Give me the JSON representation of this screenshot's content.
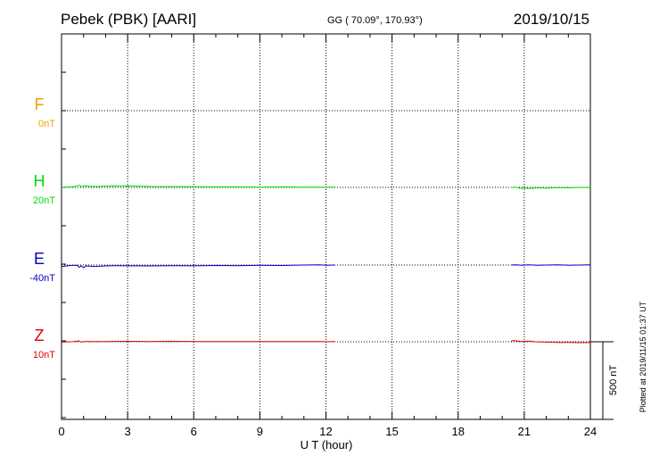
{
  "header": {
    "station": "Pebek (PBK)  [AARI]",
    "coords": "GG ( 70.09°, 170.93°)",
    "date": "2019/10/15"
  },
  "plotted_note": "Plotted at 2019/11/15 01:37 UT",
  "scale_label": "500 nT",
  "colors": {
    "F": "#f0a000",
    "H": "#00dd00",
    "E": "#0000cc",
    "Z": "#dd0000"
  },
  "chart_data": {
    "type": "line",
    "xlabel": "U T (hour)",
    "xlim": [
      0,
      24
    ],
    "xticks": [
      "0",
      "3",
      "6",
      "9",
      "12",
      "15",
      "18",
      "21",
      "24"
    ],
    "scale_bar_nT": 500,
    "series": [
      {
        "name": "F",
        "offset_label": "0nT",
        "color": "#f0a000",
        "segments": []
      },
      {
        "name": "H",
        "offset_label": "20nT",
        "color": "#00dd00",
        "segments": [
          {
            "x": [
              0,
              0.5,
              0.8,
              0.9,
              1.0,
              1.5,
              2.0,
              3.0,
              4.0,
              5.0,
              6.0,
              7.0,
              8.0,
              9.0,
              10.0,
              11.0,
              11.7,
              12.0,
              12.4
            ],
            "y": [
              0,
              4,
              14,
              6,
              10,
              6,
              8,
              10,
              6,
              5,
              4,
              3,
              3,
              2,
              3,
              2,
              2,
              1,
              2
            ]
          },
          {
            "x": [
              20.4,
              20.6,
              20.8,
              21.0,
              21.3,
              21.6,
              22.0,
              22.5,
              23.0,
              23.5,
              24.0
            ],
            "y": [
              -2,
              2,
              -6,
              -4,
              -7,
              -3,
              -5,
              -2,
              -3,
              0,
              -1
            ]
          }
        ]
      },
      {
        "name": "E",
        "offset_label": "-40nT",
        "color": "#0000cc",
        "segments": [
          {
            "x": [
              0,
              0.4,
              0.7,
              0.8,
              0.9,
              1.0,
              1.1,
              1.5,
              2.0,
              2.5,
              3.0,
              4.0,
              5.0,
              6.0,
              7.0,
              8.0,
              9.0,
              10.0,
              11.0,
              11.7,
              12.0,
              12.4
            ],
            "y": [
              -10,
              -3,
              -2,
              -15,
              -5,
              -18,
              -6,
              -9,
              -6,
              -4,
              -5,
              -6,
              -4,
              -5,
              -3,
              -4,
              -2,
              -3,
              0,
              1,
              -1,
              0
            ]
          },
          {
            "x": [
              20.4,
              20.6,
              20.9,
              21.2,
              21.6,
              22.0,
              22.5,
              23.0,
              23.5,
              24.0
            ],
            "y": [
              0,
              2,
              -1,
              1,
              -2,
              0,
              1,
              -1,
              0,
              1
            ]
          }
        ]
      },
      {
        "name": "Z",
        "offset_label": "10nT",
        "color": "#dd0000",
        "segments": [
          {
            "x": [
              0,
              0.5,
              0.8,
              0.9,
              1.0,
              1.5,
              2.0,
              3.0,
              4.0,
              5.0,
              6.0,
              7.0,
              8.0,
              9.0,
              10.0,
              11.0,
              11.7,
              12.0,
              12.4
            ],
            "y": [
              -2,
              0,
              6,
              -3,
              2,
              1,
              2,
              3,
              2,
              3,
              2,
              2,
              1,
              2,
              1,
              2,
              1,
              0,
              1
            ]
          },
          {
            "x": [
              20.4,
              20.5,
              20.7,
              20.9,
              21.2,
              21.5,
              21.8,
              22.2,
              22.6,
              23.0,
              23.5,
              24.0
            ],
            "y": [
              4,
              8,
              5,
              2,
              4,
              0,
              -2,
              -3,
              -5,
              -4,
              -6,
              -5
            ]
          }
        ]
      }
    ]
  }
}
